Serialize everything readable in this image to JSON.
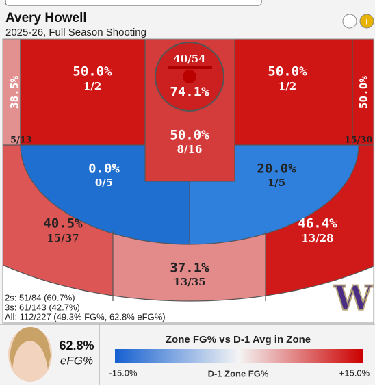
{
  "chart_data": {
    "type": "shotchart",
    "player": "Avery Howell",
    "subtitle": "2025-26, Full Season Shooting",
    "zones": [
      {
        "pct": "74.1%",
        "shots": "40/54",
        "color": "#cc1f1f"
      },
      {
        "pct": "50.0%",
        "shots": "8/16",
        "color": "#d43c3c"
      },
      {
        "pct": "50.0%",
        "shots": "1/2",
        "color": "#d01515"
      },
      {
        "pct": "50.0%",
        "shots": "1/2",
        "color": "#d01515"
      },
      {
        "pct": "38.5%",
        "shots": "5/13",
        "color": "#e39090"
      },
      {
        "pct": "50.0%",
        "shots": "15/30",
        "color": "#d01515"
      },
      {
        "pct": "0.0%",
        "shots": "0/5",
        "color": "#1f6fd0"
      },
      {
        "pct": "20.0%",
        "shots": "1/5",
        "color": "#2f80dc"
      },
      {
        "pct": "40.5%",
        "shots": "15/37",
        "color": "#dd5656"
      },
      {
        "pct": "37.1%",
        "shots": "13/35",
        "color": "#e38a8a"
      },
      {
        "pct": "46.4%",
        "shots": "13/28",
        "color": "#d01a1a"
      }
    ],
    "stats": [
      "2s: 51/84 (60.7%)",
      "3s: 61/143 (42.7%)",
      "All: 112/227 (49.3% FG%, 62.8% eFG%)"
    ],
    "logo": "W",
    "efg_value": "62.8%",
    "efg_label": "eFG%",
    "colorbar": {
      "title": "Zone FG% vs D-1 Avg in Zone",
      "min_label": "-15.0%",
      "center_label": "D-1 Zone FG%",
      "max_label": "+15.0%",
      "colors": [
        "#1560d0",
        "#f4f4f4",
        "#cc0000"
      ]
    }
  }
}
